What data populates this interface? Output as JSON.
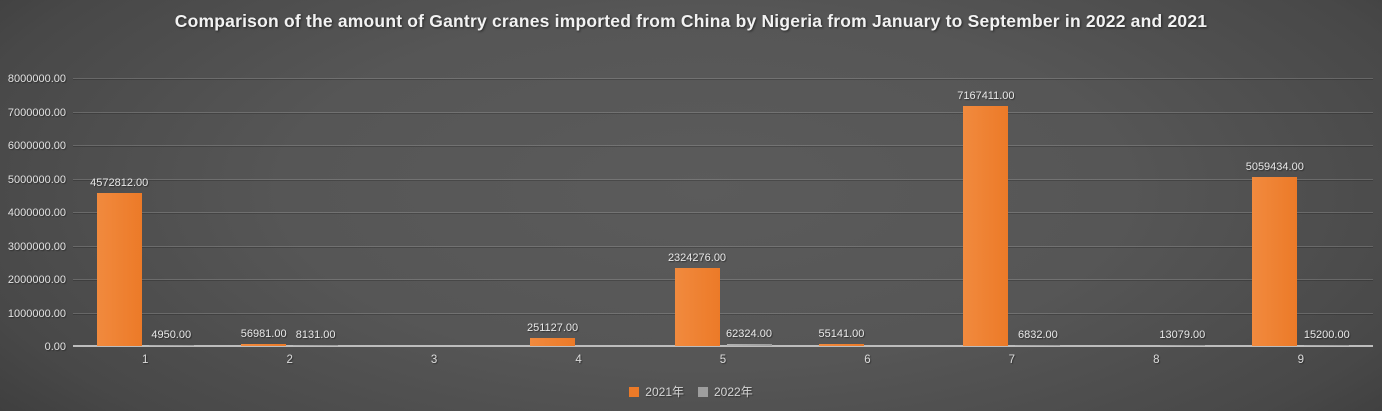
{
  "title": "Comparison of the amount of Gantry cranes imported from China by Nigeria from January to September in 2022 and 2021",
  "chart_data": {
    "type": "bar",
    "categories": [
      "1",
      "2",
      "3",
      "4",
      "5",
      "6",
      "7",
      "8",
      "9"
    ],
    "series": [
      {
        "name": "2021年",
        "color": "#EC7A28",
        "color_light": "#F18A3E",
        "values": [
          4572812,
          56981,
          null,
          251127,
          2324276,
          55141,
          7167411,
          null,
          5059434
        ],
        "labels": [
          "4572812.00",
          "56981.00",
          "",
          "251127.00",
          "2324276.00",
          "55141.00",
          "7167411.00",
          "",
          "5059434.00"
        ]
      },
      {
        "name": "2022年",
        "color": "#9E9E9E",
        "color_light": "#B2B2B2",
        "values": [
          4950,
          8131,
          null,
          null,
          62324,
          null,
          6832,
          13079,
          15200
        ],
        "labels": [
          "4950.00",
          "8131.00",
          "",
          "",
          "62324.00",
          "",
          "6832.00",
          "13079.00",
          "15200.00"
        ]
      }
    ],
    "title": "Comparison of the amount of Gantry cranes imported from China by Nigeria from January to September in 2022 and 2021",
    "xlabel": "",
    "ylabel": "",
    "ylim": [
      0,
      8000000
    ],
    "y_ticks": [
      "0.00",
      "1000000.00",
      "2000000.00",
      "3000000.00",
      "4000000.00",
      "5000000.00",
      "6000000.00",
      "7000000.00",
      "8000000.00"
    ],
    "grid": true,
    "legend_position": "bottom"
  }
}
